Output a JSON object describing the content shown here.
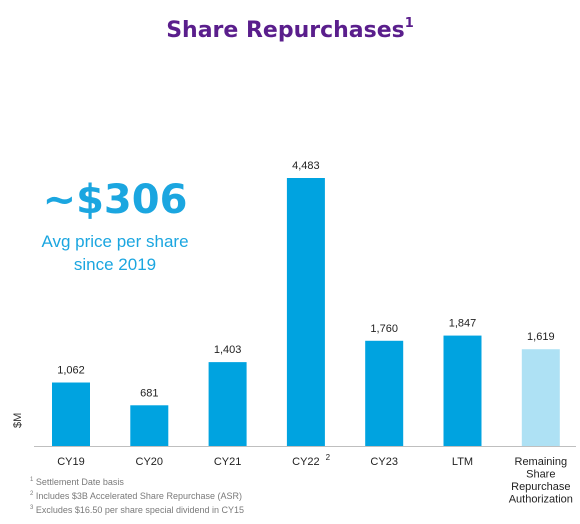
{
  "title": "Share Repurchases",
  "title_sup": "1",
  "callout": {
    "value": "~$306",
    "line1": "Avg price per share",
    "line2": "since 2019"
  },
  "unit_label": "$M",
  "chart_data": {
    "type": "bar",
    "title": "Share Repurchases",
    "ylabel": "$M",
    "categories": [
      "CY19",
      "CY20",
      "CY21",
      "CY22",
      "CY23",
      "LTM",
      "Remaining Share Repurchase Authorization"
    ],
    "category_lines": [
      [
        "CY19"
      ],
      [
        "CY20"
      ],
      [
        "CY21"
      ],
      [
        "CY22"
      ],
      [
        "CY23"
      ],
      [
        "LTM"
      ],
      [
        "Remaining",
        "Share",
        "Repurchase",
        "Authorization"
      ]
    ],
    "category_sup": [
      "",
      "",
      "",
      "2",
      "",
      "",
      ""
    ],
    "values": [
      1062,
      681,
      1403,
      4483,
      1760,
      1847,
      1619
    ],
    "value_labels": [
      "1,062",
      "681",
      "1,403",
      "4,483",
      "1,760",
      "1,847",
      "1,619"
    ],
    "colors": [
      "#00a3e0",
      "#00a3e0",
      "#00a3e0",
      "#00a3e0",
      "#00a3e0",
      "#00a3e0",
      "#aee1f4"
    ],
    "ylim": [
      0,
      4483
    ],
    "grid": false
  },
  "footnotes": [
    {
      "num": "1",
      "text": "Settlement Date basis"
    },
    {
      "num": "2",
      "text": "Includes $3B Accelerated Share Repurchase (ASR)"
    },
    {
      "num": "3",
      "text": "Excludes $16.50 per share special dividend in CY15"
    }
  ]
}
